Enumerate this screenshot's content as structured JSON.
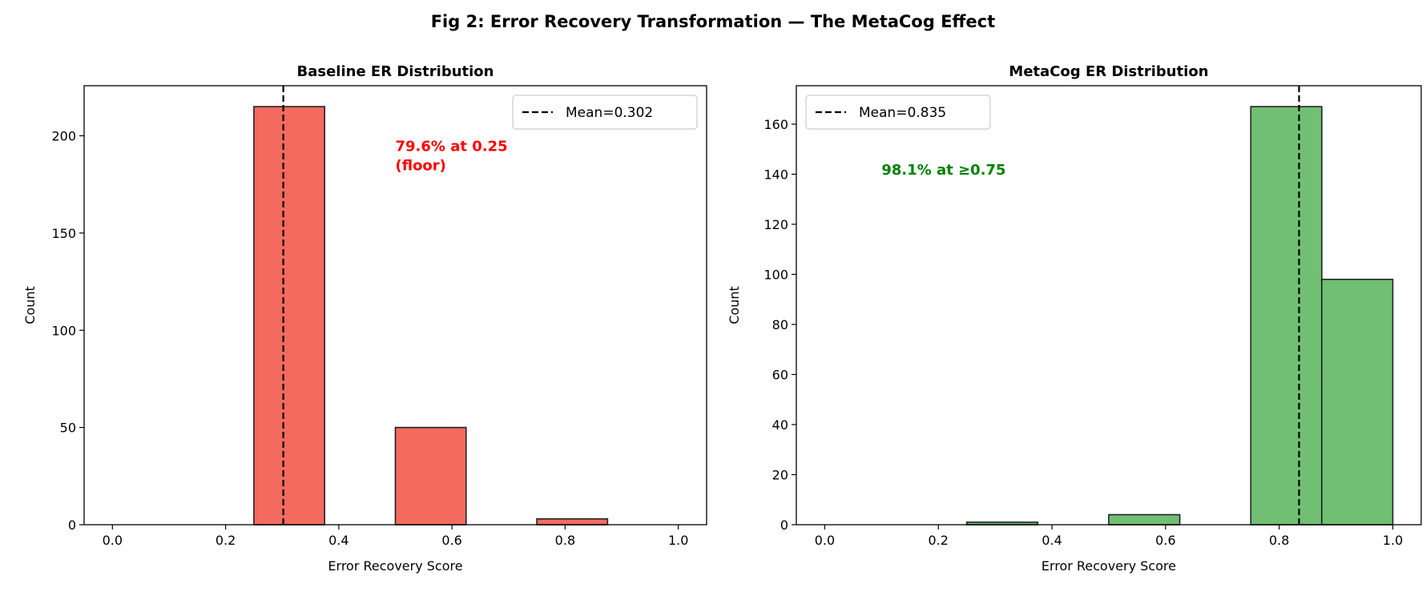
{
  "suptitle": "Fig 2: Error Recovery Transformation — The MetaCog Effect",
  "chart_data": [
    {
      "type": "bar",
      "subtype": "histogram",
      "title": "Baseline ER Distribution",
      "xlabel": "Error Recovery Score",
      "ylabel": "Count",
      "xlim": [
        -0.05,
        1.05
      ],
      "ylim": [
        0,
        225.75
      ],
      "xticks": [
        "0.0",
        "0.2",
        "0.4",
        "0.6",
        "0.8",
        "1.0"
      ],
      "yticks": [
        "0",
        "50",
        "100",
        "150",
        "200"
      ],
      "bins": [
        [
          0.25,
          0.375
        ],
        [
          0.5,
          0.625
        ],
        [
          0.75,
          0.875
        ]
      ],
      "values": [
        215,
        50,
        3
      ],
      "color": "#f46a5e",
      "mean": 0.302,
      "legend": {
        "label": "Mean=0.302",
        "placement": "upper right"
      },
      "annotation": {
        "text": [
          "79.6% at 0.25",
          "(floor)"
        ],
        "x": 0.5,
        "y": 200,
        "color": "#ff0000"
      },
      "grid": false
    },
    {
      "type": "bar",
      "subtype": "histogram",
      "title": "MetaCog ER Distribution",
      "xlabel": "Error Recovery Score",
      "ylabel": "Count",
      "xlim": [
        -0.05,
        1.05
      ],
      "ylim": [
        0,
        175.35
      ],
      "xticks": [
        "0.0",
        "0.2",
        "0.4",
        "0.6",
        "0.8",
        "1.0"
      ],
      "yticks": [
        "0",
        "20",
        "40",
        "60",
        "80",
        "100",
        "120",
        "140",
        "160"
      ],
      "bins": [
        [
          0.25,
          0.375
        ],
        [
          0.5,
          0.625
        ],
        [
          0.75,
          0.875
        ],
        [
          0.875,
          1.0
        ]
      ],
      "values": [
        1,
        4,
        167,
        98
      ],
      "color": "#70bf73",
      "mean": 0.835,
      "legend": {
        "label": "Mean=0.835",
        "placement": "upper left"
      },
      "annotation": {
        "text": [
          "98.1% at ≥0.75"
        ],
        "x": 0.1,
        "y": 142,
        "color": "#008000"
      },
      "grid": false
    }
  ]
}
